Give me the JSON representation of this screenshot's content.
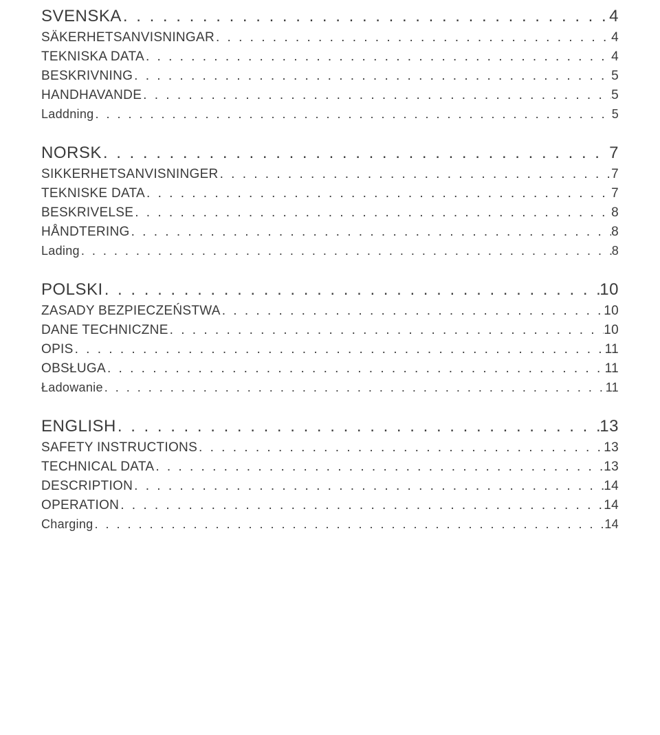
{
  "toc": {
    "sections": [
      {
        "title": "SVENSKA",
        "page": "4",
        "items": [
          {
            "label": "SÄKERHETSANVISNINGAR",
            "page": "4",
            "level": 2
          },
          {
            "label": "TEKNISKA DATA",
            "page": "4",
            "level": 2
          },
          {
            "label": "BESKRIVNING",
            "page": "5",
            "level": 2
          },
          {
            "label": "HANDHAVANDE",
            "page": "5",
            "level": 2
          },
          {
            "label": "Laddning",
            "page": "5",
            "level": 3
          }
        ]
      },
      {
        "title": "NORSK",
        "page": "7",
        "items": [
          {
            "label": "SIKKERHETSANVISNINGER",
            "page": "7",
            "level": 2
          },
          {
            "label": "TEKNISKE DATA",
            "page": "7",
            "level": 2
          },
          {
            "label": "BESKRIVELSE",
            "page": "8",
            "level": 2
          },
          {
            "label": "HÅNDTERING",
            "page": "8",
            "level": 2
          },
          {
            "label": "Lading",
            "page": "8",
            "level": 3
          }
        ]
      },
      {
        "title": "POLSKI",
        "page": "10",
        "items": [
          {
            "label": "ZASADY BEZPIECZEŃSTWA",
            "page": "10",
            "level": 2
          },
          {
            "label": "DANE TECHNICZNE",
            "page": "10",
            "level": 2
          },
          {
            "label": "OPIS",
            "page": "11",
            "level": 2
          },
          {
            "label": "OBSŁUGA",
            "page": "11",
            "level": 2
          },
          {
            "label": "Ładowanie",
            "page": "11",
            "level": 3
          }
        ]
      },
      {
        "title": "ENGLISH",
        "page": "13",
        "items": [
          {
            "label": "SAFETY INSTRUCTIONS",
            "page": "13",
            "level": 2
          },
          {
            "label": "TECHNICAL DATA",
            "page": "13",
            "level": 2
          },
          {
            "label": "DESCRIPTION",
            "page": "14",
            "level": 2
          },
          {
            "label": "OPERATION",
            "page": "14",
            "level": 2
          },
          {
            "label": "Charging",
            "page": "14",
            "level": 3
          }
        ]
      }
    ]
  },
  "style": {
    "text_color": "#3a3a3a",
    "background_color": "#ffffff",
    "lvl1_fontsize": 24,
    "lvl2_fontsize": 19,
    "lvl3_fontsize": 18,
    "font_weight": 300
  }
}
